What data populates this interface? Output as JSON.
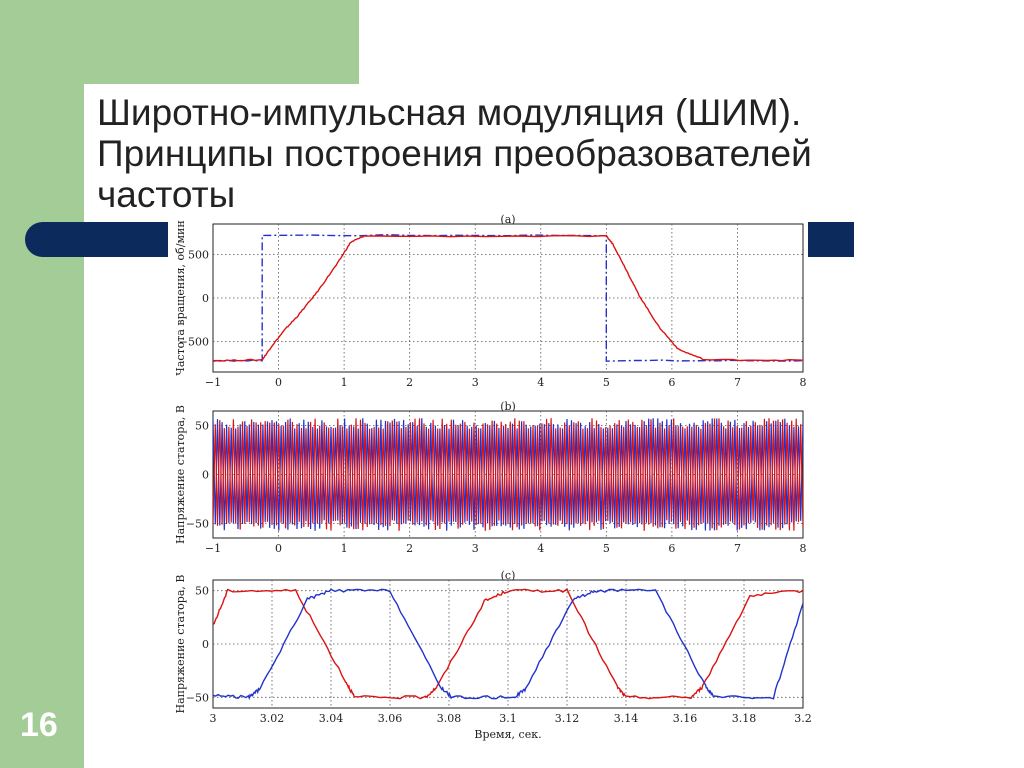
{
  "slide": {
    "title_lines": [
      "Широтно-импульсная модуляция (ШИМ).",
      "Принципы построения преобразователей",
      "частоты"
    ],
    "number": "16",
    "colors": {
      "green": "#a3cc96",
      "navy": "#0c2a5c"
    }
  },
  "chart_data": [
    {
      "type": "line",
      "title": "(a)",
      "xlabel": "",
      "ylabel": "Частота вращения, об/мин",
      "xlim": [
        -1,
        8
      ],
      "ylim": [
        -850,
        850
      ],
      "xticks": [
        -1,
        0,
        1,
        2,
        3,
        4,
        5,
        6,
        7,
        8
      ],
      "yticks": [
        -500,
        0,
        500
      ],
      "grid": true,
      "series": [
        {
          "color": "#2233cc",
          "style": "dash-dot",
          "x": [
            -1,
            -0.25,
            -0.25,
            5.0,
            5.0,
            8
          ],
          "y": [
            -720,
            -720,
            720,
            720,
            -720,
            -720
          ]
        },
        {
          "color": "#dd1111",
          "style": "solid",
          "x": [
            -1,
            -0.25,
            -0.1,
            0.1,
            0.3,
            0.6,
            0.9,
            1.1,
            1.3,
            5.0,
            5.1,
            5.3,
            5.5,
            5.8,
            6.1,
            6.5,
            8
          ],
          "y": [
            -720,
            -710,
            -550,
            -360,
            -200,
            80,
            400,
            640,
            710,
            710,
            620,
            330,
            30,
            -330,
            -590,
            -710,
            -715
          ]
        }
      ]
    },
    {
      "type": "line",
      "title": "(b)",
      "xlabel": "",
      "ylabel": "Напряжение статора, В",
      "xlim": [
        -1,
        8
      ],
      "ylim": [
        -65,
        65
      ],
      "xticks": [
        -1,
        0,
        1,
        2,
        3,
        4,
        5,
        6,
        7,
        8
      ],
      "yticks": [
        -50,
        0,
        50
      ],
      "grid": true,
      "series": [
        {
          "color": "#2233cc",
          "style": "pwm",
          "amplitude": 55,
          "x_range": [
            -1,
            8
          ]
        },
        {
          "color": "#dd1111",
          "style": "pwm",
          "amplitude": 55,
          "x_range": [
            -1,
            8
          ]
        }
      ]
    },
    {
      "type": "line",
      "title": "(c)",
      "xlabel": "Время, сек.",
      "ylabel": "Напряжение статора, В",
      "xlim": [
        3,
        3.2
      ],
      "ylim": [
        -60,
        60
      ],
      "xticks": [
        3,
        3.02,
        3.04,
        3.06,
        3.08,
        3.1,
        3.12,
        3.14,
        3.16,
        3.18,
        3.2
      ],
      "xtick_labels": [
        "3",
        "3.02",
        "3.04",
        "3.06",
        "3.08",
        "3.1",
        "3.12",
        "3.14",
        "3.16",
        "3.18",
        "3.2"
      ],
      "yticks": [
        -50,
        0,
        50
      ],
      "grid": true,
      "series": [
        {
          "color": "#dd1111",
          "style": "solid",
          "x": [
            3.0,
            3.005,
            3.028,
            3.045,
            3.048,
            3.072,
            3.076,
            3.092,
            3.1,
            3.12,
            3.137,
            3.14,
            3.162,
            3.166,
            3.182,
            3.2
          ],
          "y": [
            17,
            50,
            50,
            -35,
            -50,
            -50,
            -40,
            40,
            50,
            50,
            -40,
            -50,
            -50,
            -40,
            45,
            50
          ]
        },
        {
          "color": "#2233cc",
          "style": "solid",
          "x": [
            3.0,
            3.012,
            3.016,
            3.032,
            3.04,
            3.06,
            3.077,
            3.081,
            3.102,
            3.106,
            3.122,
            3.13,
            3.15,
            3.167,
            3.17,
            3.19,
            3.2
          ],
          "y": [
            -48,
            -50,
            -42,
            42,
            50,
            50,
            -40,
            -50,
            -50,
            -42,
            42,
            50,
            50,
            -40,
            -50,
            -50,
            38
          ]
        }
      ]
    }
  ]
}
